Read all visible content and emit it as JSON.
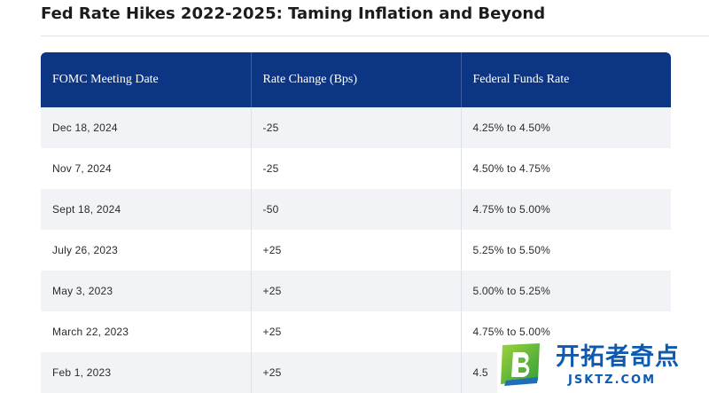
{
  "page": {
    "title": "Fed Rate Hikes 2022-2025: Taming Inflation and Beyond"
  },
  "table": {
    "headers": [
      "FOMC Meeting Date",
      "Rate Change (Bps)",
      "Federal Funds Rate"
    ],
    "rows": [
      [
        "Dec 18, 2024",
        "-25",
        "4.25% to 4.50%"
      ],
      [
        "Nov 7, 2024",
        "-25",
        "4.50% to 4.75%"
      ],
      [
        "Sept 18, 2024",
        "-50",
        "4.75% to 5.00%"
      ],
      [
        "July 26, 2023",
        "+25",
        "5.25% to 5.50%"
      ],
      [
        "May 3, 2023",
        "+25",
        "5.00% to 5.25%"
      ],
      [
        "March 22, 2023",
        "+25",
        "4.75% to 5.00%"
      ],
      [
        "Feb 1, 2023",
        "+25",
        "4.5"
      ]
    ]
  },
  "watermark": {
    "logo_icon": "green-square-b-logo",
    "brand_text": "开拓者奇点",
    "brand_sub": "JSKTZ.COM"
  },
  "colors": {
    "header_bg": "#0c3583",
    "row_stripe": "#f1f3f7",
    "watermark_blue": "#0d5ab0",
    "logo_green": "#3da93a"
  }
}
